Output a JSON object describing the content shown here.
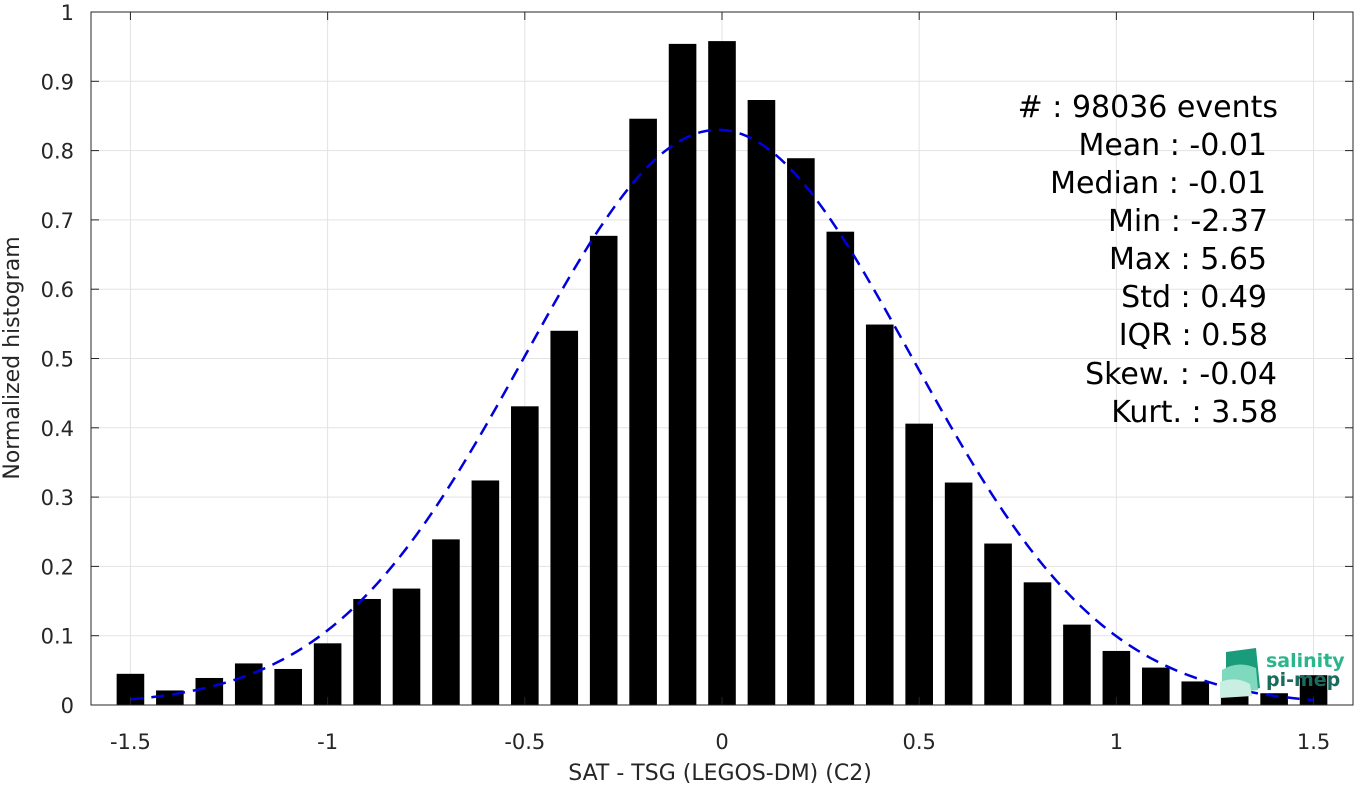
{
  "chart_data": {
    "type": "bar",
    "xlabel": "SAT - TSG (LEGOS-DM) (C2)",
    "ylabel": "Normalized histogram",
    "xlim": [
      -1.6,
      1.6
    ],
    "ylim": [
      0,
      1
    ],
    "x_ticks": [
      "-1.5",
      "-1",
      "-0.5",
      "0",
      "0.5",
      "1",
      "1.5"
    ],
    "x_tick_values": [
      -1.5,
      -1,
      -0.5,
      0,
      0.5,
      1,
      1.5
    ],
    "y_ticks": [
      "0",
      "0.1",
      "0.2",
      "0.3",
      "0.4",
      "0.5",
      "0.6",
      "0.7",
      "0.8",
      "0.9",
      "1"
    ],
    "y_tick_values": [
      0,
      0.1,
      0.2,
      0.3,
      0.4,
      0.5,
      0.6,
      0.7,
      0.8,
      0.9,
      1
    ],
    "grid": true,
    "bar_color": "#000000",
    "bar_width": 0.07,
    "x": [
      -1.5,
      -1.4,
      -1.3,
      -1.2,
      -1.1,
      -1.0,
      -0.9,
      -0.8,
      -0.7,
      -0.6,
      -0.5,
      -0.4,
      -0.3,
      -0.2,
      -0.1,
      0.0,
      0.1,
      0.2,
      0.3,
      0.4,
      0.5,
      0.6,
      0.7,
      0.8,
      0.9,
      1.0,
      1.1,
      1.2,
      1.3,
      1.4,
      1.5
    ],
    "values": [
      0.045,
      0.021,
      0.039,
      0.06,
      0.052,
      0.089,
      0.153,
      0.168,
      0.239,
      0.324,
      0.431,
      0.54,
      0.677,
      0.846,
      0.954,
      0.958,
      0.873,
      0.789,
      0.683,
      0.549,
      0.406,
      0.321,
      0.233,
      0.177,
      0.116,
      0.078,
      0.054,
      0.034,
      0.027,
      0.017,
      0.043
    ],
    "fit": {
      "type": "gaussian",
      "mean": -0.01,
      "std": 0.49,
      "peak": 0.83,
      "color": "#0000dd",
      "style": "dashed"
    },
    "annotations": [
      "#  : 98036 events",
      "Mean : -0.01",
      "Median : -0.01",
      "Min : -2.37",
      "Max : 5.65",
      "Std : 0.49",
      "IQR : 0.58",
      "Skew. : -0.04",
      "Kurt. : 3.58"
    ]
  },
  "logo": {
    "line1": "salinity",
    "line2": "pi-mep",
    "color1": "#2ab58a",
    "color2": "#1a6b5e"
  }
}
